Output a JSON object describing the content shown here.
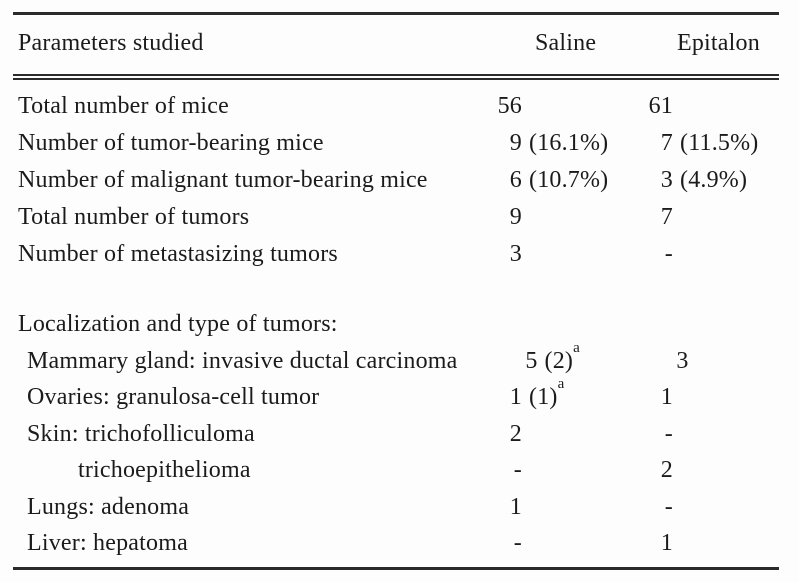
{
  "page": {
    "background_color": "#fdfdfd",
    "text_color": "#1b1b1d",
    "rule_color": "#2b2b2d"
  },
  "table": {
    "header": {
      "label": "Parameters studied",
      "saline": "Saline",
      "epitalon": "Epitalon"
    },
    "rows": [
      {
        "label": "Total number of mice",
        "indent": 0,
        "s_num": "56",
        "e_num": "61"
      },
      {
        "label": "Number of tumor-bearing mice",
        "indent": 0,
        "s_num": "9",
        "s_rest": "(16.1%)",
        "e_num": "7",
        "e_rest": "(11.5%)"
      },
      {
        "label": "Number of malignant tumor-bearing mice",
        "indent": 0,
        "s_num": "6",
        "s_rest": "(10.7%)",
        "e_num": "3",
        "e_rest": "(4.9%)"
      },
      {
        "label": "Total number of tumors",
        "indent": 0,
        "s_num": "9",
        "e_num": "7"
      },
      {
        "label": "Number of metastasizing tumors",
        "indent": 0,
        "s_num": "3",
        "e_num": "-"
      },
      {
        "label": "Localization and type of tumors:",
        "indent": 0
      },
      {
        "label": "Mammary gland: invasive ductal carcinoma",
        "indent": 1,
        "s_num": "5",
        "s_rest": "(2)",
        "s_sup": "a",
        "e_num": "3"
      },
      {
        "label": "Ovaries: granulosa-cell tumor",
        "indent": 1,
        "s_num": "1",
        "s_rest": "(1)",
        "s_sup": "a",
        "e_num": "1"
      },
      {
        "label": "Skin: trichofolliculoma",
        "indent": 1,
        "s_num": "2",
        "e_num": "-"
      },
      {
        "label": "trichoepithelioma",
        "indent": 2,
        "s_num": "-",
        "e_num": "2"
      },
      {
        "label": "Lungs: adenoma",
        "indent": 1,
        "s_num": "1",
        "e_num": "-"
      },
      {
        "label": "Liver: hepatoma",
        "indent": 1,
        "s_num": "-",
        "e_num": "1"
      }
    ]
  }
}
